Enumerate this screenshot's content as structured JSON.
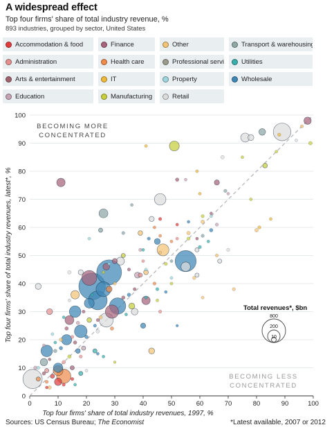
{
  "header": {
    "title": "A widespread effect",
    "subtitle": "Top four firms' share of total industry revenue, %",
    "note": "893 industries, grouped by sector, United States"
  },
  "legend": [
    {
      "label": "Accommodation & food",
      "color": "#e03c3c"
    },
    {
      "label": "Finance",
      "color": "#a8647a"
    },
    {
      "label": "Other",
      "color": "#f3c475"
    },
    {
      "label": "Transport & warehousing",
      "color": "#8ea8a6"
    },
    {
      "label": "Administration",
      "color": "#e69190"
    },
    {
      "label": "Health care",
      "color": "#ef8c4b"
    },
    {
      "label": "Professional services",
      "color": "#9a9a8d"
    },
    {
      "label": "Utilities",
      "color": "#3aafac"
    },
    {
      "label": "Arts & entertainment",
      "color": "#a0636d"
    },
    {
      "label": "IT",
      "color": "#f0b93c"
    },
    {
      "label": "Property",
      "color": "#9fd6dd"
    },
    {
      "label": "Wholesale",
      "color": "#3f87b5"
    },
    {
      "label": "Education",
      "color": "#c7a4b2"
    },
    {
      "label": "Manufacturing",
      "color": "#c8cf3c"
    },
    {
      "label": "Retail",
      "color": "#dcdcdc"
    }
  ],
  "annotations": {
    "more": [
      "BECOMING MORE",
      "CONCENTRATED"
    ],
    "less": [
      "BECOMING LESS",
      "CONCENTRATED"
    ],
    "size_title": "Total revenues*, $bn",
    "size_values": [
      "800",
      "200",
      "10"
    ]
  },
  "footer": {
    "source_prefix": "Sources: US Census Bureau; ",
    "source_italic": "The Economist",
    "note": "*Latest available, 2007 or 2012"
  },
  "chart_data": {
    "type": "scatter",
    "title": "A widespread effect",
    "xlabel": "Top four firms' share of total industry revenues, 1997, %",
    "ylabel": "Top four firms' share of total industry revenues, latest*, %",
    "xlim": [
      0,
      100
    ],
    "ylim": [
      0,
      100
    ],
    "xticks": [
      0,
      10,
      20,
      30,
      40,
      50,
      60,
      70,
      80,
      90,
      100
    ],
    "yticks": [
      0,
      10,
      20,
      30,
      40,
      50,
      60,
      70,
      80,
      90,
      100
    ],
    "reference_line": "y = x",
    "grid": true,
    "size_legend_bn": [
      800,
      200,
      10
    ],
    "points": [
      {
        "s": "Wholesale",
        "x": 22,
        "y": 39,
        "r": 800
      },
      {
        "s": "Wholesale",
        "x": 28,
        "y": 44,
        "r": 700
      },
      {
        "s": "Wholesale",
        "x": 55,
        "y": 48,
        "r": 500
      },
      {
        "s": "Retail",
        "x": 1,
        "y": 6,
        "r": 420
      },
      {
        "s": "Wholesale",
        "x": 24,
        "y": 34,
        "r": 400
      },
      {
        "s": "Wholesale",
        "x": 31,
        "y": 32,
        "r": 300
      },
      {
        "s": "Retail",
        "x": 89,
        "y": 94,
        "r": 350
      },
      {
        "s": "Finance",
        "x": 21,
        "y": 42,
        "r": 250
      },
      {
        "s": "Health care",
        "x": 12,
        "y": 7,
        "r": 230
      },
      {
        "s": "Wholesale",
        "x": 26,
        "y": 38,
        "r": 250
      },
      {
        "s": "Retail",
        "x": 27,
        "y": 27,
        "r": 220
      },
      {
        "s": "Finance",
        "x": 29,
        "y": 30,
        "r": 200
      },
      {
        "s": "Wholesale",
        "x": 18,
        "y": 23,
        "r": 180
      },
      {
        "s": "Retail",
        "x": 46,
        "y": 70,
        "r": 150
      },
      {
        "s": "Other",
        "x": 47,
        "y": 52,
        "r": 160
      },
      {
        "s": "Wholesale",
        "x": 16,
        "y": 30,
        "r": 150
      },
      {
        "s": "Wholesale",
        "x": 6,
        "y": 16,
        "r": 150
      },
      {
        "s": "Wholesale",
        "x": 13,
        "y": 20,
        "r": 120
      },
      {
        "s": "Manufacturing",
        "x": 51,
        "y": 89,
        "r": 110
      },
      {
        "s": "Retail",
        "x": 76,
        "y": 92,
        "r": 90
      },
      {
        "s": "Finance",
        "x": 11,
        "y": 76,
        "r": 80
      },
      {
        "s": "Transport & warehousing",
        "x": 26,
        "y": 65,
        "r": 90
      },
      {
        "s": "Finance",
        "x": 98,
        "y": 98,
        "r": 60
      },
      {
        "s": "Transport & warehousing",
        "x": 82,
        "y": 94,
        "r": 50
      },
      {
        "s": "Retail",
        "x": 55,
        "y": 46,
        "r": 100
      },
      {
        "s": "Health care",
        "x": 10,
        "y": 9,
        "r": 110
      },
      {
        "s": "Finance",
        "x": 41,
        "y": 34,
        "r": 80
      },
      {
        "s": "Wholesale",
        "x": 10,
        "y": 10,
        "r": 100
      },
      {
        "s": "Wholesale",
        "x": 21,
        "y": 33,
        "r": 110
      },
      {
        "s": "Finance",
        "x": 14,
        "y": 27,
        "r": 90
      },
      {
        "s": "Other",
        "x": 16,
        "y": 36,
        "r": 80
      },
      {
        "s": "Retail",
        "x": 32,
        "y": 48,
        "r": 70
      },
      {
        "s": "Wholesale",
        "x": 45,
        "y": 55,
        "r": 40
      },
      {
        "s": "Other",
        "x": 43,
        "y": 16,
        "r": 40
      },
      {
        "s": "Finance",
        "x": 27,
        "y": 46,
        "r": 50
      },
      {
        "s": "Finance",
        "x": 66,
        "y": 76,
        "r": 30
      },
      {
        "s": "Retail",
        "x": 78,
        "y": 92,
        "r": 40
      },
      {
        "s": "Retail",
        "x": 37,
        "y": 30,
        "r": 50
      },
      {
        "s": "Retail",
        "x": 3,
        "y": 39,
        "r": 40
      },
      {
        "s": "Retail",
        "x": 43,
        "y": 63,
        "r": 30
      },
      {
        "s": "Transport & warehousing",
        "x": 5,
        "y": 12,
        "r": 60
      },
      {
        "s": "Administration",
        "x": 7,
        "y": 30,
        "r": 40
      },
      {
        "s": "Health care",
        "x": 28,
        "y": 38,
        "r": 40
      },
      {
        "s": "Accommodation & food",
        "x": 10,
        "y": 5,
        "r": 60
      },
      {
        "s": "Manufacturing",
        "x": 36,
        "y": 32,
        "r": 40
      },
      {
        "s": "Education",
        "x": 38,
        "y": 43,
        "r": 40
      },
      {
        "s": "Wholesale",
        "x": 40,
        "y": 25,
        "r": 30
      },
      {
        "s": "Retail",
        "x": 18,
        "y": 44,
        "r": 30
      },
      {
        "s": "Finance",
        "x": 30,
        "y": 48,
        "r": 30
      },
      {
        "s": "Transport & warehousing",
        "x": 25,
        "y": 59,
        "r": 20
      },
      {
        "s": "Other",
        "x": 39,
        "y": 58,
        "r": 25
      },
      {
        "s": "Manufacturing",
        "x": 83,
        "y": 82,
        "r": 25
      },
      {
        "s": "Manufacturing",
        "x": 99,
        "y": 90,
        "r": 15
      },
      {
        "s": "Retail",
        "x": 67,
        "y": 48,
        "r": 20
      },
      {
        "s": "Other",
        "x": 80,
        "y": 59,
        "r": 15
      },
      {
        "s": "Retail",
        "x": 59,
        "y": 52,
        "r": 20
      },
      {
        "s": "Retail",
        "x": 59,
        "y": 43,
        "r": 20
      },
      {
        "s": "Administration",
        "x": 39,
        "y": 43,
        "r": 20
      },
      {
        "s": "Other",
        "x": 41,
        "y": 44,
        "r": 25
      },
      {
        "s": "Manufacturing",
        "x": 33,
        "y": 50,
        "r": 20
      },
      {
        "s": "Utilities",
        "x": 18,
        "y": 8,
        "r": 20
      },
      {
        "s": "Utilities",
        "x": 23,
        "y": 16,
        "r": 20
      },
      {
        "s": "Wholesale",
        "x": 17,
        "y": 16,
        "r": 25
      },
      {
        "s": "Finance",
        "x": 15,
        "y": 10,
        "r": 20
      },
      {
        "s": "Manufacturing",
        "x": 21,
        "y": 27,
        "r": 25
      },
      {
        "s": "Education",
        "x": 19,
        "y": 17,
        "r": 20
      },
      {
        "s": "Accommodation & food",
        "x": 8,
        "y": 7,
        "r": 20
      },
      {
        "s": "Administration",
        "x": 6,
        "y": 9,
        "r": 20
      },
      {
        "s": "Arts & entertainment",
        "x": 5,
        "y": 8,
        "r": 15
      },
      {
        "s": "Education",
        "x": 2,
        "y": 10,
        "r": 15
      },
      {
        "s": "Health care",
        "x": 3,
        "y": 6,
        "r": 20
      },
      {
        "s": "Other",
        "x": 7,
        "y": 3,
        "r": 15
      },
      {
        "s": "Property",
        "x": 3,
        "y": 10,
        "r": 12
      },
      {
        "s": "Administration",
        "x": 12,
        "y": 12,
        "r": 15
      },
      {
        "s": "Other",
        "x": 11,
        "y": 20,
        "r": 15
      },
      {
        "s": "Manufacturing",
        "x": 14,
        "y": 14,
        "r": 15
      },
      {
        "s": "Transport & warehousing",
        "x": 9,
        "y": 16,
        "r": 15
      },
      {
        "s": "Wholesale",
        "x": 11,
        "y": 17,
        "r": 15
      },
      {
        "s": "Finance",
        "x": 13,
        "y": 24,
        "r": 15
      },
      {
        "s": "Arts & entertainment",
        "x": 16,
        "y": 19,
        "r": 15
      },
      {
        "s": "Wholesale",
        "x": 20,
        "y": 21,
        "r": 15
      },
      {
        "s": "Retail",
        "x": 24,
        "y": 23,
        "r": 15
      },
      {
        "s": "Other",
        "x": 25,
        "y": 28,
        "r": 15
      },
      {
        "s": "Education",
        "x": 17,
        "y": 26,
        "r": 15
      },
      {
        "s": "Health care",
        "x": 29,
        "y": 24,
        "r": 15
      },
      {
        "s": "Arts & entertainment",
        "x": 33,
        "y": 35,
        "r": 15
      },
      {
        "s": "Wholesale",
        "x": 35,
        "y": 36,
        "r": 15
      },
      {
        "s": "Finance",
        "x": 24,
        "y": 27,
        "r": 12
      },
      {
        "s": "Administration",
        "x": 18,
        "y": 14,
        "r": 12
      },
      {
        "s": "Accommodation & food",
        "x": 15,
        "y": 6,
        "r": 12
      },
      {
        "s": "Accommodation & food",
        "x": 12,
        "y": 4,
        "r": 12
      },
      {
        "s": "Health care",
        "x": 6,
        "y": 5,
        "r": 12
      },
      {
        "s": "Education",
        "x": 5,
        "y": 18,
        "r": 10
      },
      {
        "s": "Arts & entertainment",
        "x": 7,
        "y": 13,
        "r": 10
      },
      {
        "s": "Administration",
        "x": 15,
        "y": 21,
        "r": 12
      },
      {
        "s": "Finance",
        "x": 19,
        "y": 30,
        "r": 12
      },
      {
        "s": "Wholesale",
        "x": 23,
        "y": 25,
        "r": 12
      },
      {
        "s": "Other",
        "x": 30,
        "y": 40,
        "r": 12
      },
      {
        "s": "Manufacturing",
        "x": 26,
        "y": 44,
        "r": 10
      },
      {
        "s": "Property",
        "x": 8,
        "y": 22,
        "r": 10
      },
      {
        "s": "Retail",
        "x": 14,
        "y": 34,
        "r": 10
      },
      {
        "s": "Utilities",
        "x": 12,
        "y": 28,
        "r": 10
      },
      {
        "s": "Utilities",
        "x": 22,
        "y": 36,
        "r": 10
      },
      {
        "s": "Utilities",
        "x": 26,
        "y": 14,
        "r": 10
      },
      {
        "s": "Utilities",
        "x": 34,
        "y": 29,
        "r": 10
      },
      {
        "s": "Utilities",
        "x": 41,
        "y": 35,
        "r": 12
      },
      {
        "s": "Utilities",
        "x": 45,
        "y": 38,
        "r": 12
      },
      {
        "s": "Utilities",
        "x": 60,
        "y": 53,
        "r": 12
      },
      {
        "s": "Utilities",
        "x": 63,
        "y": 55,
        "r": 10
      },
      {
        "s": "Utilities",
        "x": 40,
        "y": 52,
        "r": 10
      },
      {
        "s": "Utilities",
        "x": 9,
        "y": 19,
        "r": 10
      },
      {
        "s": "Utilities",
        "x": 16,
        "y": 4,
        "r": 10
      },
      {
        "s": "Wholesale",
        "x": 52,
        "y": 25,
        "r": 8
      },
      {
        "s": "Wholesale",
        "x": 42,
        "y": 56,
        "r": 12
      },
      {
        "s": "Wholesale",
        "x": 64,
        "y": 59,
        "r": 15
      },
      {
        "s": "Wholesale",
        "x": 24,
        "y": 15,
        "r": 10
      },
      {
        "s": "Accommodation & food",
        "x": 46,
        "y": 63,
        "r": 12
      },
      {
        "s": "Accommodation & food",
        "x": 52,
        "y": 61,
        "r": 10
      },
      {
        "s": "Accommodation & food",
        "x": 6,
        "y": 3,
        "r": 10
      },
      {
        "s": "Health care",
        "x": 44,
        "y": 40,
        "r": 12
      },
      {
        "s": "Health care",
        "x": 50,
        "y": 55,
        "r": 10
      },
      {
        "s": "Health care",
        "x": 46,
        "y": 57,
        "r": 10
      },
      {
        "s": "Administration",
        "x": 46,
        "y": 30,
        "r": 12
      },
      {
        "s": "Administration",
        "x": 40,
        "y": 48,
        "r": 10
      },
      {
        "s": "Arts & entertainment",
        "x": 37,
        "y": 38,
        "r": 12
      },
      {
        "s": "Arts & entertainment",
        "x": 52,
        "y": 77,
        "r": 15
      },
      {
        "s": "Education",
        "x": 66,
        "y": 61,
        "r": 12
      },
      {
        "s": "Education",
        "x": 39,
        "y": 52,
        "r": 12
      },
      {
        "s": "Transport & warehousing",
        "x": 69,
        "y": 73,
        "r": 12
      },
      {
        "s": "Transport & warehousing",
        "x": 61,
        "y": 57,
        "r": 12
      },
      {
        "s": "Transport & warehousing",
        "x": 33,
        "y": 58,
        "r": 12
      },
      {
        "s": "Property",
        "x": 21,
        "y": 56,
        "r": 10
      },
      {
        "s": "Property",
        "x": 28,
        "y": 47,
        "r": 10
      },
      {
        "s": "Property",
        "x": 50,
        "y": 42,
        "r": 10
      },
      {
        "s": "IT",
        "x": 81,
        "y": 60,
        "r": 12
      },
      {
        "s": "IT",
        "x": 88,
        "y": 93,
        "r": 12
      },
      {
        "s": "IT",
        "x": 60,
        "y": 72,
        "r": 10
      },
      {
        "s": "IT",
        "x": 85,
        "y": 63,
        "r": 10
      },
      {
        "s": "IT",
        "x": 59,
        "y": 80,
        "r": 10
      },
      {
        "s": "IT",
        "x": 41,
        "y": 89,
        "r": 10
      },
      {
        "s": "Other",
        "x": 96,
        "y": 96,
        "r": 12
      },
      {
        "s": "Other",
        "x": 56,
        "y": 58,
        "r": 15
      },
      {
        "s": "Other",
        "x": 61,
        "y": 62,
        "r": 15
      },
      {
        "s": "Other",
        "x": 72,
        "y": 38,
        "r": 12
      },
      {
        "s": "Other",
        "x": 58,
        "y": 42,
        "r": 12
      },
      {
        "s": "Other",
        "x": 66,
        "y": 50,
        "r": 12
      },
      {
        "s": "Other",
        "x": 61,
        "y": 35,
        "r": 10
      },
      {
        "s": "Other",
        "x": 46,
        "y": 51,
        "r": 10
      },
      {
        "s": "Manufacturing",
        "x": 61,
        "y": 64,
        "r": 12
      },
      {
        "s": "Manufacturing",
        "x": 56,
        "y": 56,
        "r": 12
      },
      {
        "s": "Manufacturing",
        "x": 48,
        "y": 47,
        "r": 12
      },
      {
        "s": "Manufacturing",
        "x": 50,
        "y": 40,
        "r": 10
      },
      {
        "s": "Manufacturing",
        "x": 78,
        "y": 70,
        "r": 10
      },
      {
        "s": "Manufacturing",
        "x": 87,
        "y": 87,
        "r": 10
      },
      {
        "s": "Manufacturing",
        "x": 75,
        "y": 85,
        "r": 10
      },
      {
        "s": "Manufacturing",
        "x": 45,
        "y": 34,
        "r": 10
      },
      {
        "s": "Manufacturing",
        "x": 30,
        "y": 12,
        "r": 8
      },
      {
        "s": "Retail",
        "x": 14,
        "y": 44,
        "r": 15
      },
      {
        "s": "Retail",
        "x": 20,
        "y": 9,
        "r": 10
      },
      {
        "s": "Retail",
        "x": 68,
        "y": 85,
        "r": 15
      },
      {
        "s": "Retail",
        "x": 70,
        "y": 52,
        "r": 12
      },
      {
        "s": "Retail",
        "x": 94,
        "y": 91,
        "r": 10
      },
      {
        "s": "Transport & warehousing",
        "x": 36,
        "y": 68,
        "r": 10
      },
      {
        "s": "Transport & warehousing",
        "x": 50,
        "y": 48,
        "r": 10
      },
      {
        "s": "Finance",
        "x": 64,
        "y": 65,
        "r": 10
      },
      {
        "s": "Finance",
        "x": 35,
        "y": 45,
        "r": 12
      },
      {
        "s": "Education",
        "x": 55,
        "y": 77,
        "r": 10
      },
      {
        "s": "Education",
        "x": 70,
        "y": 72,
        "r": 10
      },
      {
        "s": "Property",
        "x": 41,
        "y": 45,
        "r": 10
      },
      {
        "s": "Property",
        "x": 64,
        "y": 64,
        "r": 10
      },
      {
        "s": "Administration",
        "x": 52,
        "y": 56,
        "r": 10
      },
      {
        "s": "Arts & entertainment",
        "x": 59,
        "y": 56,
        "r": 10
      },
      {
        "s": "Wholesale",
        "x": 56,
        "y": 62,
        "r": 10
      },
      {
        "s": "Wholesale",
        "x": 48,
        "y": 37,
        "r": 10
      },
      {
        "s": "Health care",
        "x": 44,
        "y": 60,
        "r": 10
      }
    ]
  }
}
